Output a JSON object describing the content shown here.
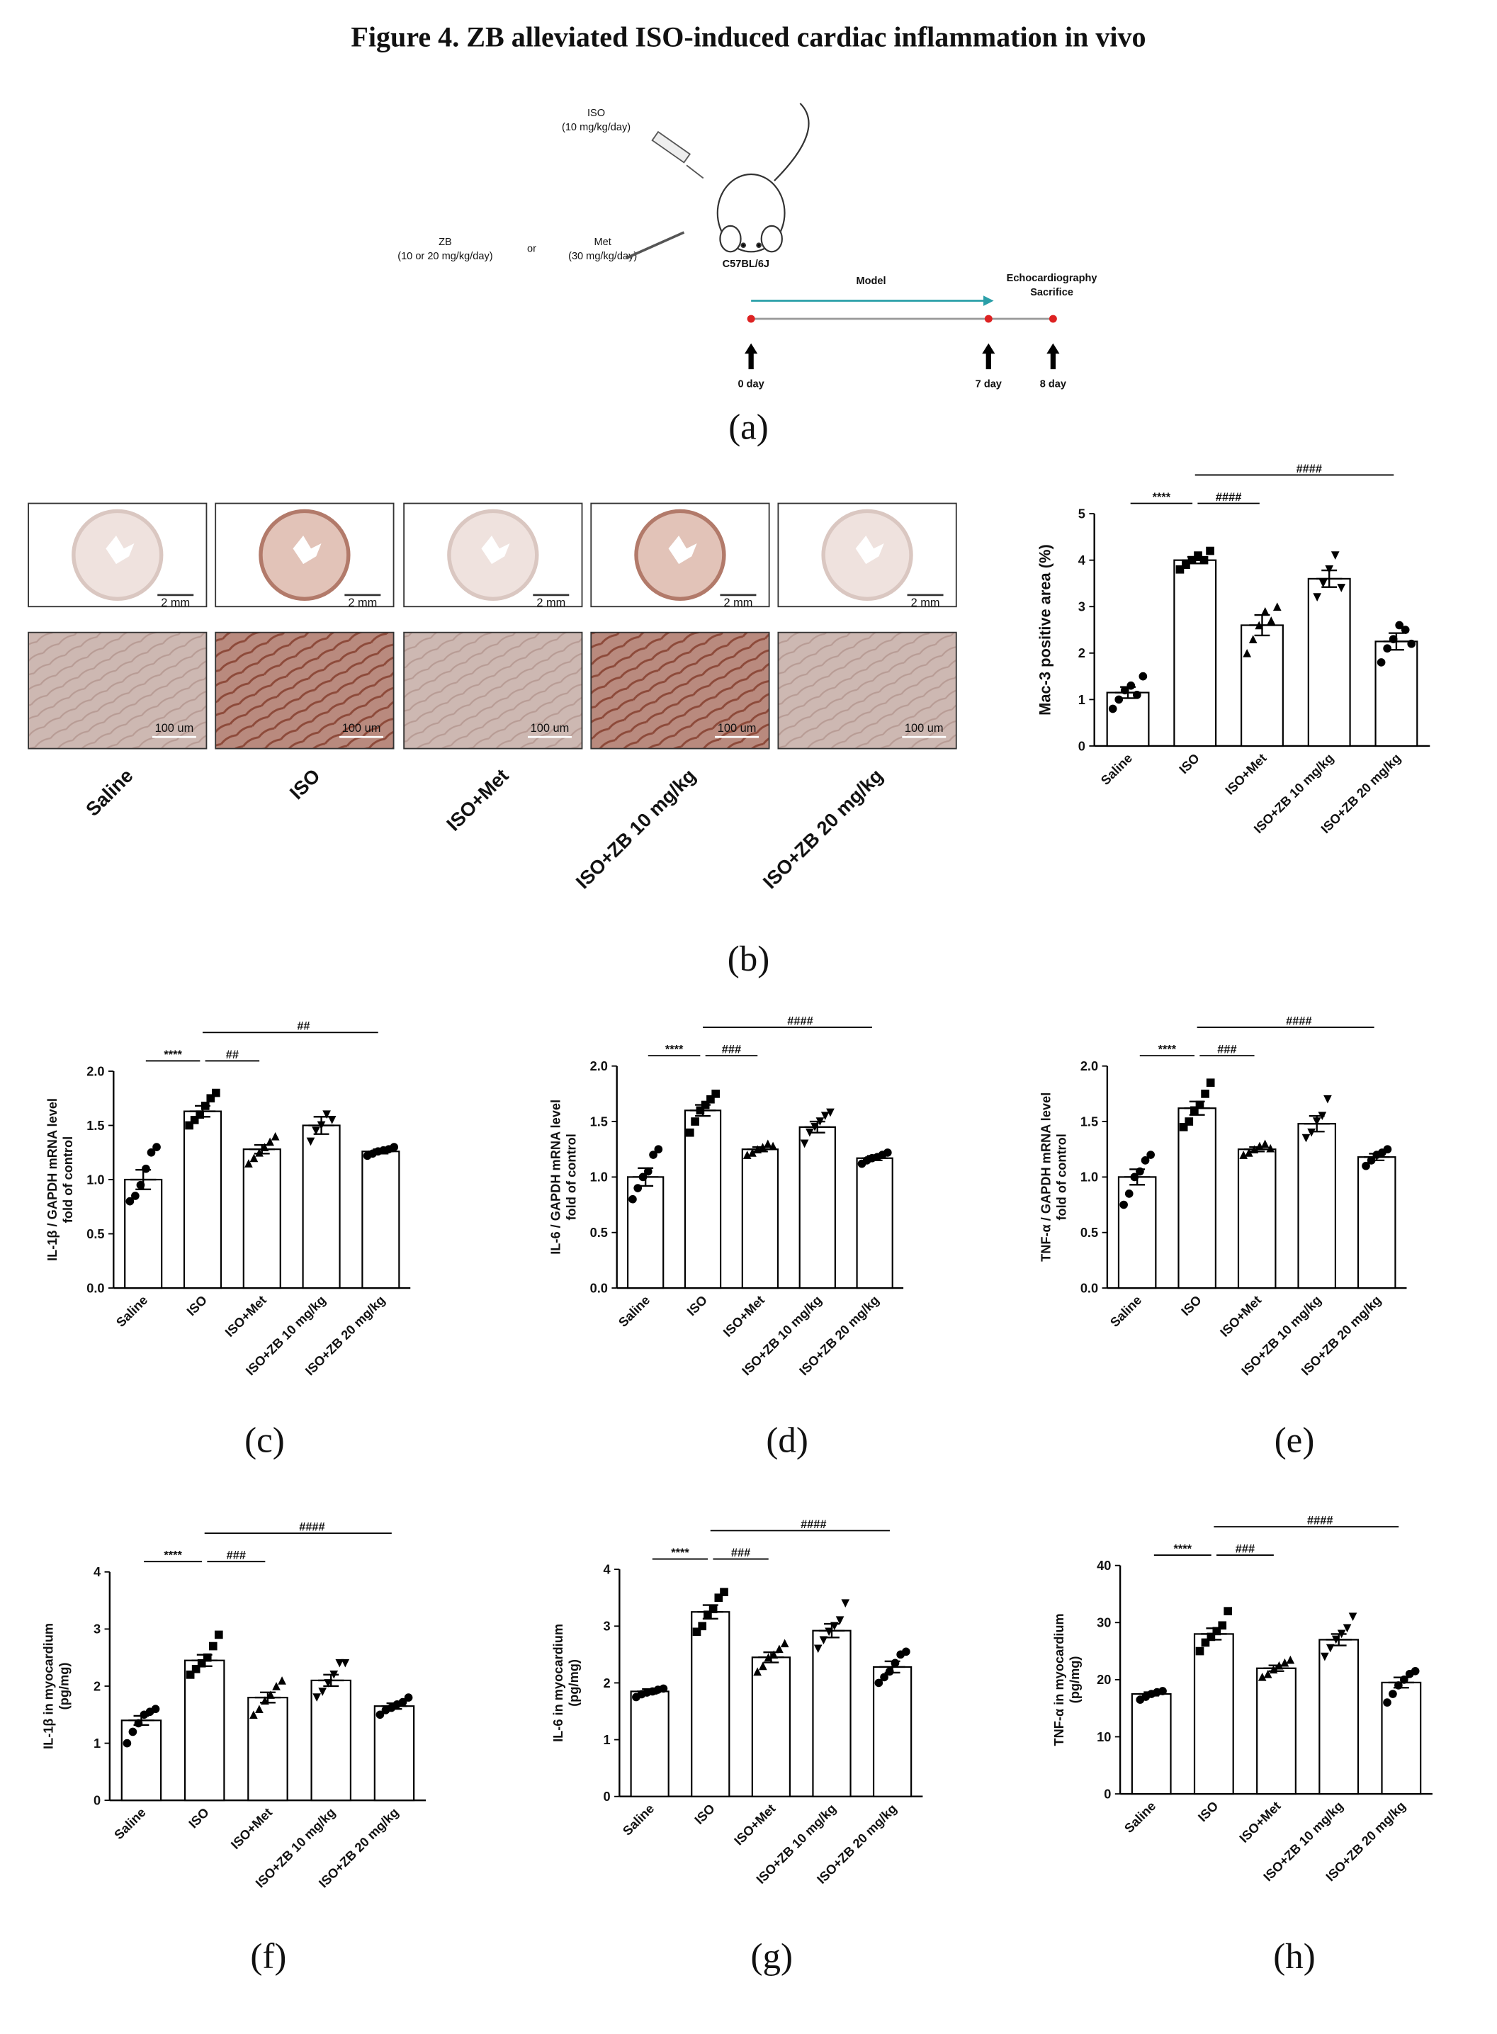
{
  "title": "Figure 4. ZB alleviated ISO-induced cardiac inflammation in vivo",
  "schematic": {
    "iso": "ISO",
    "iso_dose": "(10 mg/kg/day)",
    "zb": "ZB",
    "zb_dose": "(10 or 20 mg/kg/day)",
    "or": "or",
    "met": "Met",
    "met_dose": "(30 mg/kg/day)",
    "strain": "C57BL/6J",
    "model": "Model",
    "echo": "Echocardiography",
    "sacrifice": "Sacrifice",
    "days": [
      "0 day",
      "7 day",
      "8 day"
    ],
    "panel_label": "(a)"
  },
  "micrographs": {
    "groups": [
      "Saline",
      "ISO",
      "ISO+Met",
      "ISO+ZB 10 mg/kg",
      "ISO+ZB 20 mg/kg"
    ],
    "scale_top": "2 mm",
    "scale_bottom": "100 um",
    "panel_label": "(b)"
  },
  "chart_data": [
    {
      "type": "bar",
      "ylabel": [
        "Mac-3 positive area (%)"
      ],
      "categories": [
        "Saline",
        "ISO",
        "ISO+Met",
        "ISO+ZB 10 mg/kg",
        "ISO+ZB 20 mg/kg"
      ],
      "values": [
        1.15,
        4.0,
        2.6,
        3.6,
        2.25
      ],
      "errors": [
        0.12,
        0.07,
        0.22,
        0.18,
        0.18
      ],
      "points": [
        [
          0.8,
          1.0,
          1.2,
          1.3,
          1.1,
          1.5
        ],
        [
          3.8,
          3.9,
          4.0,
          4.1,
          4.0,
          4.2
        ],
        [
          2.0,
          2.3,
          2.6,
          2.9,
          2.7,
          3.0
        ],
        [
          3.2,
          3.5,
          3.8,
          4.1,
          3.4
        ],
        [
          1.8,
          2.1,
          2.3,
          2.6,
          2.5,
          2.2
        ]
      ],
      "ylim": [
        0,
        5
      ],
      "yticks": [
        0,
        1,
        2,
        3,
        4,
        5
      ],
      "significance": [
        {
          "label": "****",
          "from": 0,
          "to": 1
        },
        {
          "label": "####",
          "from": 1,
          "to": 2
        },
        {
          "label": "####",
          "from": 1,
          "to": 4
        }
      ]
    },
    {
      "type": "bar",
      "ylabel": [
        "IL-1β / GAPDH mRNA level",
        "fold of control"
      ],
      "categories": [
        "Saline",
        "ISO",
        "ISO+Met",
        "ISO+ZB 10 mg/kg",
        "ISO+ZB 20 mg/kg"
      ],
      "values": [
        1.0,
        1.63,
        1.28,
        1.5,
        1.26
      ],
      "errors": [
        0.09,
        0.05,
        0.04,
        0.08,
        0.02
      ],
      "points": [
        [
          0.8,
          0.85,
          0.95,
          1.1,
          1.25,
          1.3
        ],
        [
          1.5,
          1.55,
          1.6,
          1.68,
          1.75,
          1.8
        ],
        [
          1.15,
          1.2,
          1.25,
          1.3,
          1.35,
          1.4
        ],
        [
          1.35,
          1.45,
          1.5,
          1.6,
          1.55
        ],
        [
          1.22,
          1.24,
          1.26,
          1.27,
          1.28,
          1.3
        ]
      ],
      "ylim": [
        0,
        2
      ],
      "yticks": [
        {
          "value": 0,
          "label": "0.0"
        },
        {
          "value": 0.5,
          "label": "0.5"
        },
        {
          "value": 1,
          "label": "1.0"
        },
        {
          "value": 1.5,
          "label": "1.5"
        },
        {
          "value": 2,
          "label": "2.0"
        }
      ],
      "significance": [
        {
          "label": "****",
          "from": 0,
          "to": 1
        },
        {
          "label": "##",
          "from": 1,
          "to": 2
        },
        {
          "label": "##",
          "from": 1,
          "to": 4
        }
      ],
      "panel_label": "(c)"
    },
    {
      "type": "bar",
      "ylabel": [
        "IL-6 / GAPDH mRNA level",
        "fold of control"
      ],
      "categories": [
        "Saline",
        "ISO",
        "ISO+Met",
        "ISO+ZB 10 mg/kg",
        "ISO+ZB 20 mg/kg"
      ],
      "values": [
        1.0,
        1.6,
        1.25,
        1.45,
        1.17
      ],
      "errors": [
        0.08,
        0.05,
        0.02,
        0.05,
        0.02
      ],
      "points": [
        [
          0.8,
          0.9,
          1.0,
          1.05,
          1.2,
          1.25
        ],
        [
          1.4,
          1.5,
          1.6,
          1.65,
          1.7,
          1.75
        ],
        [
          1.2,
          1.22,
          1.25,
          1.27,
          1.3,
          1.28
        ],
        [
          1.3,
          1.4,
          1.45,
          1.5,
          1.55,
          1.58
        ],
        [
          1.12,
          1.15,
          1.17,
          1.18,
          1.2,
          1.22
        ]
      ],
      "ylim": [
        0,
        2
      ],
      "yticks": [
        {
          "value": 0,
          "label": "0.0"
        },
        {
          "value": 0.5,
          "label": "0.5"
        },
        {
          "value": 1,
          "label": "1.0"
        },
        {
          "value": 1.5,
          "label": "1.5"
        },
        {
          "value": 2,
          "label": "2.0"
        }
      ],
      "significance": [
        {
          "label": "****",
          "from": 0,
          "to": 1
        },
        {
          "label": "###",
          "from": 1,
          "to": 2
        },
        {
          "label": "####",
          "from": 1,
          "to": 4
        }
      ],
      "panel_label": "(d)"
    },
    {
      "type": "bar",
      "ylabel": [
        "TNF-α / GAPDH mRNA level",
        "fold of control"
      ],
      "categories": [
        "Saline",
        "ISO",
        "ISO+Met",
        "ISO+ZB 10 mg/kg",
        "ISO+ZB 20 mg/kg"
      ],
      "values": [
        1.0,
        1.62,
        1.25,
        1.48,
        1.18
      ],
      "errors": [
        0.07,
        0.06,
        0.02,
        0.07,
        0.03
      ],
      "points": [
        [
          0.75,
          0.85,
          1.0,
          1.05,
          1.15,
          1.2
        ],
        [
          1.45,
          1.5,
          1.6,
          1.65,
          1.75,
          1.85
        ],
        [
          1.2,
          1.22,
          1.25,
          1.28,
          1.3,
          1.26
        ],
        [
          1.35,
          1.4,
          1.5,
          1.55,
          1.7
        ],
        [
          1.1,
          1.15,
          1.2,
          1.22,
          1.25
        ]
      ],
      "ylim": [
        0,
        2
      ],
      "yticks": [
        {
          "value": 0,
          "label": "0.0"
        },
        {
          "value": 0.5,
          "label": "0.5"
        },
        {
          "value": 1,
          "label": "1.0"
        },
        {
          "value": 1.5,
          "label": "1.5"
        },
        {
          "value": 2,
          "label": "2.0"
        }
      ],
      "significance": [
        {
          "label": "****",
          "from": 0,
          "to": 1
        },
        {
          "label": "###",
          "from": 1,
          "to": 2
        },
        {
          "label": "####",
          "from": 1,
          "to": 4
        }
      ],
      "panel_label": "(e)"
    },
    {
      "type": "bar",
      "ylabel": [
        "IL-1β in myocardium",
        "(pg/mg)"
      ],
      "categories": [
        "Saline",
        "ISO",
        "ISO+Met",
        "ISO+ZB 10 mg/kg",
        "ISO+ZB 20 mg/kg"
      ],
      "values": [
        1.4,
        2.45,
        1.8,
        2.1,
        1.65
      ],
      "errors": [
        0.08,
        0.1,
        0.09,
        0.1,
        0.05
      ],
      "points": [
        [
          1.0,
          1.2,
          1.35,
          1.5,
          1.55,
          1.6
        ],
        [
          2.2,
          2.3,
          2.4,
          2.5,
          2.7,
          2.9
        ],
        [
          1.5,
          1.6,
          1.75,
          1.85,
          2.0,
          2.1
        ],
        [
          1.8,
          1.9,
          2.05,
          2.2,
          2.4,
          2.4
        ],
        [
          1.5,
          1.58,
          1.62,
          1.68,
          1.72,
          1.8
        ]
      ],
      "ylim": [
        0,
        4
      ],
      "yticks": [
        0,
        1,
        2,
        3,
        4
      ],
      "significance": [
        {
          "label": "****",
          "from": 0,
          "to": 1
        },
        {
          "label": "###",
          "from": 1,
          "to": 2
        },
        {
          "label": "####",
          "from": 1,
          "to": 4
        }
      ],
      "panel_label": "(f)"
    },
    {
      "type": "bar",
      "ylabel": [
        "IL-6 in myocardium",
        "(pg/mg)"
      ],
      "categories": [
        "Saline",
        "ISO",
        "ISO+Met",
        "ISO+ZB 10 mg/kg",
        "ISO+ZB 20 mg/kg"
      ],
      "values": [
        1.85,
        3.25,
        2.45,
        2.92,
        2.28
      ],
      "errors": [
        0.04,
        0.12,
        0.09,
        0.12,
        0.1
      ],
      "points": [
        [
          1.75,
          1.8,
          1.83,
          1.85,
          1.88,
          1.9
        ],
        [
          2.9,
          3.0,
          3.2,
          3.3,
          3.5,
          3.6
        ],
        [
          2.2,
          2.3,
          2.45,
          2.5,
          2.6,
          2.7
        ],
        [
          2.6,
          2.75,
          2.9,
          3.0,
          3.1,
          3.4
        ],
        [
          2.0,
          2.1,
          2.2,
          2.35,
          2.5,
          2.55
        ]
      ],
      "ylim": [
        0,
        4
      ],
      "yticks": [
        0,
        1,
        2,
        3,
        4
      ],
      "significance": [
        {
          "label": "****",
          "from": 0,
          "to": 1
        },
        {
          "label": "###",
          "from": 1,
          "to": 2
        },
        {
          "label": "####",
          "from": 1,
          "to": 4
        }
      ],
      "panel_label": "(g)"
    },
    {
      "type": "bar",
      "ylabel": [
        "TNF-α in myocardium",
        "(pg/mg)"
      ],
      "categories": [
        "Saline",
        "ISO",
        "ISO+Met",
        "ISO+ZB 10 mg/kg",
        "ISO+ZB 20 mg/kg"
      ],
      "values": [
        17.5,
        28,
        22,
        27,
        19.5
      ],
      "errors": [
        0.3,
        1.0,
        0.5,
        1.0,
        0.9
      ],
      "points": [
        [
          16.5,
          17,
          17.5,
          17.8,
          18
        ],
        [
          25,
          26.5,
          27.5,
          28.5,
          29.5,
          32
        ],
        [
          20.5,
          21,
          21.8,
          22.5,
          23,
          23.5
        ],
        [
          24,
          25.5,
          27,
          28,
          29,
          31
        ],
        [
          16,
          17.5,
          19,
          20,
          21,
          21.5
        ]
      ],
      "ylim": [
        0,
        40
      ],
      "yticks": [
        0,
        10,
        20,
        30,
        40
      ],
      "significance": [
        {
          "label": "****",
          "from": 0,
          "to": 1
        },
        {
          "label": "###",
          "from": 1,
          "to": 2
        },
        {
          "label": "####",
          "from": 1,
          "to": 4
        }
      ],
      "panel_label": "(h)"
    }
  ]
}
